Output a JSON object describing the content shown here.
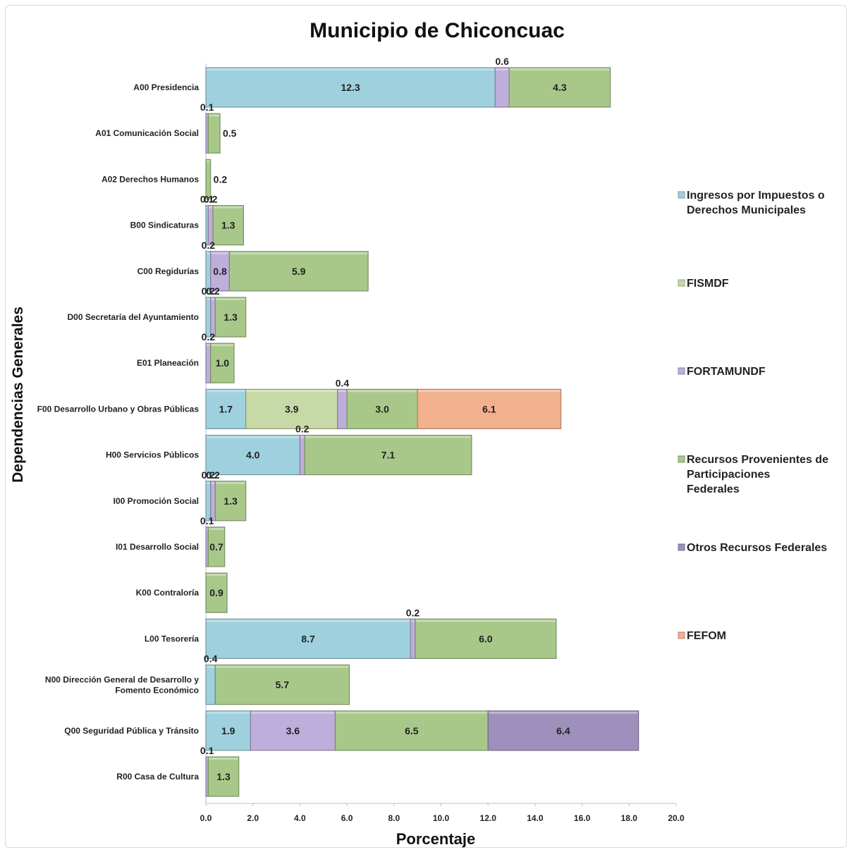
{
  "chart_data": {
    "type": "bar",
    "orientation": "horizontal",
    "stacked": true,
    "title": "Municipio de Chiconcuac",
    "xlabel": "Porcentaje",
    "ylabel": "Dependencias Generales",
    "xlim": [
      0,
      20
    ],
    "xticks": [
      "0.0",
      "2.0",
      "4.0",
      "6.0",
      "8.0",
      "10.0",
      "12.0",
      "14.0",
      "16.0",
      "18.0",
      "20.0"
    ],
    "legend_position": "right",
    "legend": [
      {
        "key": "ingresos",
        "label": "Ingresos por Impuestos o Derechos Municipales",
        "color": "#9fd0de"
      },
      {
        "key": "fismdf",
        "label": "FISMDF",
        "color": "#c6d9a6"
      },
      {
        "key": "fortamundf",
        "label": "FORTAMUNDF",
        "color": "#bdaedb"
      },
      {
        "key": "participaciones",
        "label": "Recursos Provenientes de Participaciones Federales",
        "color": "#a8c88a"
      },
      {
        "key": "otros",
        "label": "Otros Recursos Federales",
        "color": "#9e90bd"
      },
      {
        "key": "fefom",
        "label": "FEFOM",
        "color": "#f3b08e"
      }
    ],
    "categories": [
      "A00 Presidencia",
      "A01 Comunicación Social",
      "A02 Derechos Humanos",
      "B00 Sindicaturas",
      "C00 Regidurías",
      "D00 Secretaría del Ayuntamiento",
      "E01 Planeación",
      "F00 Desarrollo Urbano y Obras Públicas",
      "H00 Servicios Públicos",
      "I00 Promoción Social",
      "I01 Desarrollo Social",
      "K00 Contraloría",
      "L00 Tesorería",
      "N00 Dirección General de Desarrollo y Fomento Económico",
      "Q00 Seguridad Pública y Tránsito",
      "R00 Casa de Cultura"
    ],
    "bars": [
      {
        "segments": [
          {
            "series": "ingresos",
            "value": 12.3,
            "label": "12.3"
          },
          {
            "series": "fortamundf",
            "value": 0.6,
            "label": "0.6",
            "label_pos": "above"
          },
          {
            "series": "participaciones",
            "value": 4.3,
            "label": "4.3"
          }
        ]
      },
      {
        "segments": [
          {
            "series": "fortamundf",
            "value": 0.1,
            "label": "0.1",
            "label_pos": "above"
          },
          {
            "series": "participaciones",
            "value": 0.5,
            "label": "0.5",
            "label_pos": "right"
          }
        ]
      },
      {
        "segments": [
          {
            "series": "participaciones",
            "value": 0.2,
            "label": "0.2",
            "label_pos": "right"
          }
        ]
      },
      {
        "segments": [
          {
            "series": "ingresos",
            "value": 0.1,
            "label": "0.1",
            "label_pos": "above"
          },
          {
            "series": "fortamundf",
            "value": 0.2,
            "label": "0.2",
            "label_pos": "above"
          },
          {
            "series": "participaciones",
            "value": 1.3,
            "label": "1.3"
          }
        ]
      },
      {
        "segments": [
          {
            "series": "ingresos",
            "value": 0.2,
            "label": "0.2",
            "label_pos": "above"
          },
          {
            "series": "fortamundf",
            "value": 0.8,
            "label": "0.8"
          },
          {
            "series": "participaciones",
            "value": 5.9,
            "label": "5.9"
          }
        ]
      },
      {
        "segments": [
          {
            "series": "ingresos",
            "value": 0.2,
            "label": "0.2",
            "label_pos": "above"
          },
          {
            "series": "fortamundf",
            "value": 0.2,
            "label": "0.2",
            "label_pos": "above"
          },
          {
            "series": "participaciones",
            "value": 1.3,
            "label": "1.3"
          }
        ]
      },
      {
        "segments": [
          {
            "series": "fortamundf",
            "value": 0.2,
            "label": "0.2",
            "label_pos": "above"
          },
          {
            "series": "participaciones",
            "value": 1.0,
            "label": "1.0"
          }
        ]
      },
      {
        "segments": [
          {
            "series": "ingresos",
            "value": 1.7,
            "label": "1.7"
          },
          {
            "series": "fismdf",
            "value": 3.9,
            "label": "3.9"
          },
          {
            "series": "fortamundf",
            "value": 0.4,
            "label": "0.4",
            "label_pos": "above"
          },
          {
            "series": "participaciones",
            "value": 3.0,
            "label": "3.0"
          },
          {
            "series": "fefom",
            "value": 6.1,
            "label": "6.1"
          }
        ]
      },
      {
        "segments": [
          {
            "series": "ingresos",
            "value": 4.0,
            "label": "4.0"
          },
          {
            "series": "fortamundf",
            "value": 0.2,
            "label": "0.2",
            "label_pos": "above"
          },
          {
            "series": "participaciones",
            "value": 7.1,
            "label": "7.1"
          }
        ]
      },
      {
        "segments": [
          {
            "series": "ingresos",
            "value": 0.2,
            "label": "0.2",
            "label_pos": "above"
          },
          {
            "series": "fortamundf",
            "value": 0.2,
            "label": "0.2",
            "label_pos": "above"
          },
          {
            "series": "participaciones",
            "value": 1.3,
            "label": "1.3"
          }
        ]
      },
      {
        "segments": [
          {
            "series": "fortamundf",
            "value": 0.1,
            "label": "0.1",
            "label_pos": "above"
          },
          {
            "series": "participaciones",
            "value": 0.7,
            "label": "0.7"
          }
        ]
      },
      {
        "segments": [
          {
            "series": "participaciones",
            "value": 0.9,
            "label": "0.9"
          }
        ]
      },
      {
        "segments": [
          {
            "series": "ingresos",
            "value": 8.7,
            "label": "8.7"
          },
          {
            "series": "fortamundf",
            "value": 0.2,
            "label": "0.2",
            "label_pos": "above"
          },
          {
            "series": "participaciones",
            "value": 6.0,
            "label": "6.0"
          }
        ]
      },
      {
        "segments": [
          {
            "series": "ingresos",
            "value": 0.4,
            "label": "0.4",
            "label_pos": "above"
          },
          {
            "series": "participaciones",
            "value": 5.7,
            "label": "5.7"
          }
        ]
      },
      {
        "segments": [
          {
            "series": "ingresos",
            "value": 1.9,
            "label": "1.9"
          },
          {
            "series": "fortamundf",
            "value": 3.6,
            "label": "3.6"
          },
          {
            "series": "participaciones",
            "value": 6.5,
            "label": "6.5"
          },
          {
            "series": "otros",
            "value": 6.4,
            "label": "6.4"
          }
        ]
      },
      {
        "segments": [
          {
            "series": "fortamundf",
            "value": 0.1,
            "label": "0.1",
            "label_pos": "above"
          },
          {
            "series": "participaciones",
            "value": 1.3,
            "label": "1.3"
          }
        ]
      }
    ]
  }
}
